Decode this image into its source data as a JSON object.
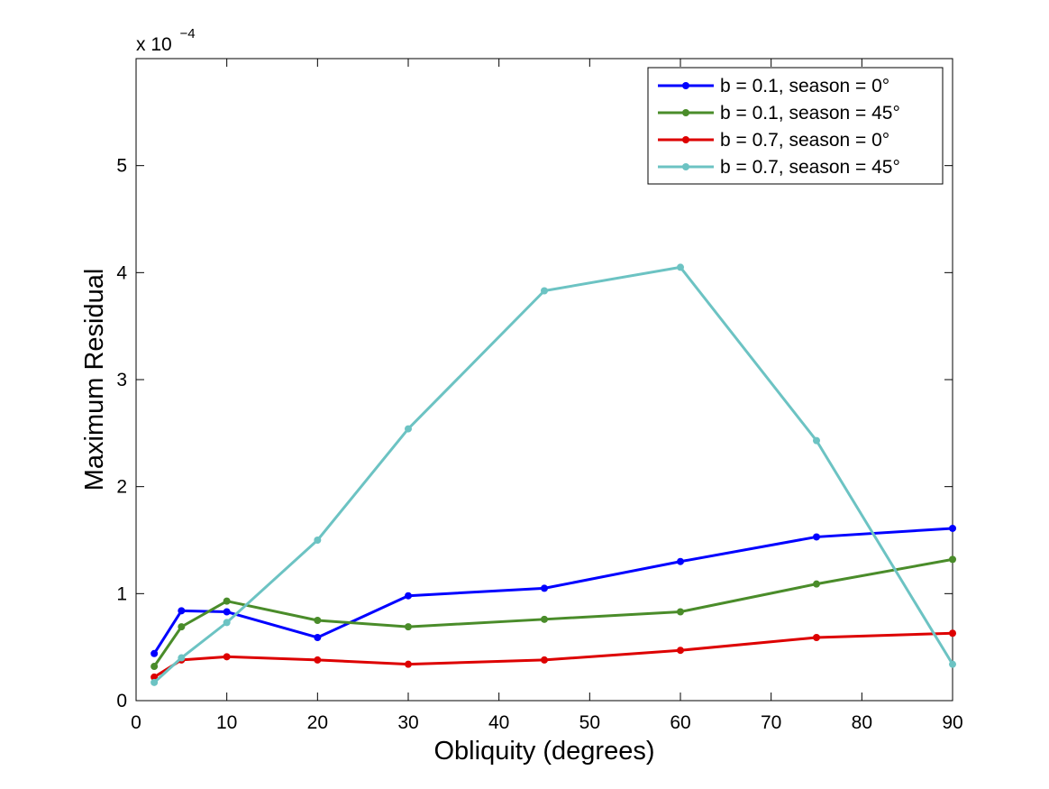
{
  "chart_data": {
    "type": "line",
    "title": "",
    "xlabel": "Obliquity (degrees)",
    "ylabel": "Maximum Residual",
    "xlim": [
      0,
      90
    ],
    "ylim": [
      0,
      6
    ],
    "xticks": [
      0,
      10,
      20,
      30,
      40,
      50,
      60,
      70,
      80,
      90
    ],
    "xtick_labels": [
      "0",
      "10",
      "20",
      "30",
      "40",
      "50",
      "60",
      "70",
      "80",
      "90"
    ],
    "yticks": [
      0,
      1,
      2,
      3,
      4,
      5
    ],
    "ytick_labels": [
      "0",
      "1",
      "2",
      "3",
      "4",
      "5"
    ],
    "y_scale_base": "x 10",
    "y_scale_exponent": "−4",
    "grid": false,
    "legend_position": "top-right",
    "x": [
      2,
      5,
      10,
      20,
      30,
      45,
      60,
      75,
      90
    ],
    "series": [
      {
        "name": "b = 0.1, season = 0°",
        "color": "#0000ff",
        "values": [
          0.44,
          0.84,
          0.83,
          0.59,
          0.98,
          1.05,
          1.3,
          1.53,
          1.61
        ]
      },
      {
        "name": "b = 0.1, season = 45°",
        "color": "#4a8c2a",
        "values": [
          0.32,
          0.69,
          0.93,
          0.75,
          0.69,
          0.76,
          0.83,
          1.09,
          1.32
        ]
      },
      {
        "name": "b = 0.7, season = 0°",
        "color": "#dd0000",
        "values": [
          0.22,
          0.38,
          0.41,
          0.38,
          0.34,
          0.38,
          0.47,
          0.59,
          0.63
        ]
      },
      {
        "name": "b = 0.7, season = 45°",
        "color": "#6cc3c3",
        "values": [
          0.17,
          0.4,
          0.73,
          1.5,
          2.54,
          3.83,
          4.05,
          2.43,
          0.34
        ]
      }
    ]
  }
}
